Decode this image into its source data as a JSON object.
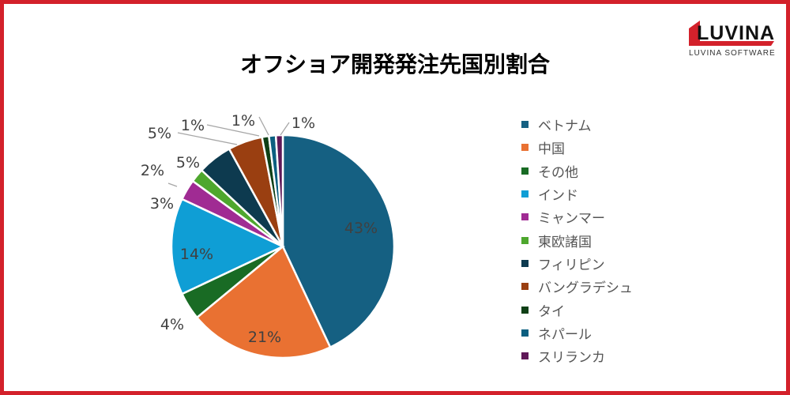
{
  "title": "オフショア開発発注先国別割合",
  "logo": {
    "text": "LUVINA",
    "subtext": "LUVINA SOFTWARE",
    "color": "#D3212B"
  },
  "chart_data": {
    "type": "pie",
    "title": "オフショア開発発注先国別割合",
    "legend_position": "right",
    "categories": [
      "ベトナム",
      "中国",
      "その他",
      "インド",
      "ミャンマー",
      "東欧諸国",
      "フィリピン",
      "バングラデシュ",
      "タイ",
      "ネパール",
      "スリランカ"
    ],
    "values": [
      43,
      21,
      4,
      14,
      3,
      2,
      5,
      5,
      1,
      1,
      1
    ],
    "labels": [
      "43%",
      "21%",
      "4%",
      "14%",
      "3%",
      "2%",
      "5%",
      "5%",
      "1%",
      "1%",
      "1%"
    ],
    "colors": [
      "#156082",
      "#E97132",
      "#196B24",
      "#0F9ED5",
      "#A02B93",
      "#4EA72E",
      "#0D3A4F",
      "#9A3F11",
      "#0F4016",
      "#0B5F80",
      "#5F1858"
    ]
  }
}
